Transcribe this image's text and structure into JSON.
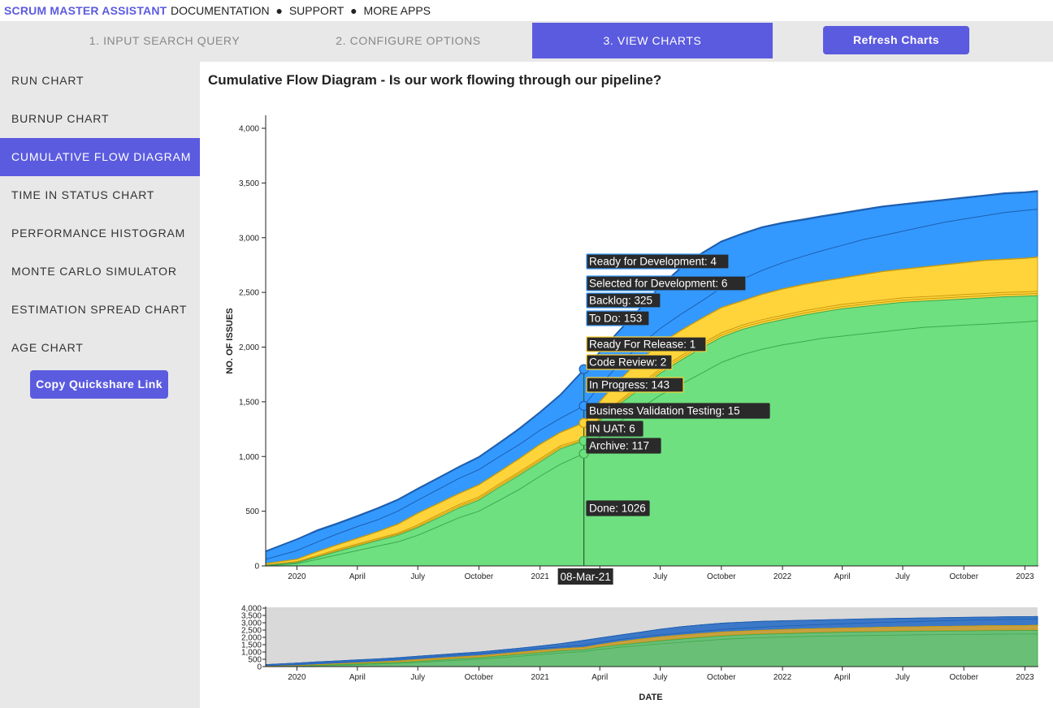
{
  "header": {
    "brand": "SCRUM MASTER ASSISTANT",
    "links": [
      "DOCUMENTATION",
      "SUPPORT",
      "MORE APPS"
    ],
    "separator": "●"
  },
  "steps": [
    {
      "label": "1. INPUT SEARCH QUERY",
      "active": false
    },
    {
      "label": "2. CONFIGURE OPTIONS",
      "active": false
    },
    {
      "label": "3. VIEW CHARTS",
      "active": true
    }
  ],
  "refresh_label": "Refresh Charts",
  "sidebar": {
    "items": [
      {
        "label": "RUN CHART",
        "active": false
      },
      {
        "label": "BURNUP CHART",
        "active": false
      },
      {
        "label": "CUMULATIVE FLOW DIAGRAM",
        "active": true
      },
      {
        "label": "TIME IN STATUS CHART",
        "active": false
      },
      {
        "label": "PERFORMANCE HISTOGRAM",
        "active": false
      },
      {
        "label": "MONTE CARLO SIMULATOR",
        "active": false
      },
      {
        "label": "ESTIMATION SPREAD CHART",
        "active": false
      },
      {
        "label": "AGE CHART",
        "active": false
      }
    ],
    "quickshare_label": "Copy Quickshare Link"
  },
  "chart_data": {
    "type": "area",
    "title": "Cumulative Flow Diagram - Is our work flowing through our pipeline?",
    "xlabel": "DATE",
    "ylabel": "NO. OF ISSUES",
    "ylim": [
      0,
      4100
    ],
    "yticks": [
      "0",
      "500",
      "1,000",
      "1,500",
      "2,000",
      "2,500",
      "3,000",
      "3,500",
      "4,000"
    ],
    "xticks": [
      "2020",
      "April",
      "July",
      "October",
      "2021",
      "April",
      "July",
      "October",
      "2022",
      "April",
      "July",
      "October",
      "2023"
    ],
    "x": [
      "2019-11-15",
      "2020-01-01",
      "2020-02-01",
      "2020-03-01",
      "2020-04-01",
      "2020-05-01",
      "2020-06-01",
      "2020-07-01",
      "2020-08-01",
      "2020-09-01",
      "2020-10-01",
      "2020-11-01",
      "2020-12-01",
      "2021-01-01",
      "2021-02-01",
      "2021-03-08",
      "2021-04-01",
      "2021-05-01",
      "2021-06-01",
      "2021-07-01",
      "2021-08-01",
      "2021-09-01",
      "2021-10-01",
      "2021-11-01",
      "2021-12-01",
      "2022-01-01",
      "2022-02-01",
      "2022-03-01",
      "2022-04-01",
      "2022-05-01",
      "2022-06-01",
      "2022-07-01",
      "2022-08-01",
      "2022-09-01",
      "2022-10-01",
      "2022-11-01",
      "2022-12-01",
      "2023-01-01",
      "2023-01-20"
    ],
    "series_order_bottom_to_top": [
      "Done",
      "Archive",
      "IN UAT",
      "Business Validation Testing",
      "In Progress",
      "Code Review",
      "Ready For Release",
      "To Do",
      "Backlog",
      "Selected for Development",
      "Ready for Development"
    ],
    "cumulative_top": [
      [
        0,
        20,
        60,
        100,
        140,
        180,
        220,
        280,
        360,
        440,
        500,
        600,
        700,
        820,
        930,
        1026,
        1180,
        1320,
        1440,
        1560,
        1660,
        1760,
        1860,
        1930,
        1980,
        2020,
        2050,
        2080,
        2100,
        2120,
        2140,
        2160,
        2180,
        2190,
        2200,
        2210,
        2220,
        2230,
        2240
      ],
      [
        5,
        30,
        80,
        130,
        180,
        230,
        280,
        350,
        440,
        530,
        600,
        720,
        830,
        950,
        1070,
        1143,
        1330,
        1480,
        1620,
        1760,
        1880,
        1990,
        2090,
        2160,
        2210,
        2250,
        2290,
        2320,
        2350,
        2370,
        2390,
        2410,
        2420,
        2430,
        2440,
        2450,
        2460,
        2465,
        2470
      ],
      [
        8,
        35,
        85,
        140,
        190,
        240,
        290,
        360,
        455,
        545,
        615,
        735,
        845,
        965,
        1085,
        1149,
        1340,
        1495,
        1640,
        1780,
        1900,
        2010,
        2110,
        2180,
        2230,
        2270,
        2310,
        2340,
        2370,
        2390,
        2410,
        2430,
        2440,
        2450,
        2460,
        2470,
        2480,
        2485,
        2490
      ],
      [
        10,
        40,
        95,
        150,
        200,
        250,
        300,
        375,
        470,
        560,
        630,
        750,
        860,
        980,
        1100,
        1164,
        1355,
        1510,
        1660,
        1800,
        1920,
        2030,
        2130,
        2200,
        2250,
        2290,
        2330,
        2360,
        2390,
        2410,
        2430,
        2450,
        2460,
        2470,
        2480,
        2490,
        2500,
        2505,
        2510
      ],
      [
        20,
        60,
        130,
        190,
        250,
        310,
        380,
        480,
        570,
        660,
        740,
        860,
        980,
        1110,
        1220,
        1307,
        1500,
        1700,
        1880,
        2030,
        2150,
        2260,
        2360,
        2420,
        2480,
        2530,
        2570,
        2600,
        2630,
        2660,
        2690,
        2710,
        2730,
        2750,
        2770,
        2790,
        2800,
        2810,
        2820
      ],
      [
        21,
        61,
        131,
        191,
        252,
        312,
        382,
        482,
        572,
        662,
        742,
        862,
        982,
        1112,
        1222,
        1309,
        1502,
        1702,
        1882,
        2032,
        2152,
        2262,
        2362,
        2422,
        2482,
        2532,
        2572,
        2602,
        2632,
        2662,
        2692,
        2712,
        2732,
        2752,
        2772,
        2792,
        2802,
        2812,
        2822
      ],
      [
        22,
        62,
        132,
        192,
        253,
        313,
        383,
        483,
        573,
        663,
        743,
        863,
        983,
        1113,
        1223,
        1310,
        1503,
        1703,
        1883,
        2033,
        2153,
        2263,
        2363,
        2423,
        2483,
        2533,
        2573,
        2603,
        2633,
        2663,
        2693,
        2713,
        2733,
        2753,
        2773,
        2793,
        2803,
        2813,
        2823
      ],
      [
        60,
        140,
        220,
        290,
        360,
        420,
        500,
        600,
        700,
        800,
        880,
        1000,
        1110,
        1240,
        1350,
        1463,
        1650,
        1850,
        2020,
        2170,
        2300,
        2420,
        2540,
        2620,
        2700,
        2770,
        2830,
        2880,
        2930,
        2980,
        3020,
        3060,
        3100,
        3140,
        3170,
        3200,
        3230,
        3250,
        3260
      ],
      [
        130,
        240,
        320,
        380,
        450,
        520,
        600,
        700,
        800,
        900,
        990,
        1120,
        1250,
        1400,
        1560,
        1788,
        1950,
        2150,
        2350,
        2550,
        2720,
        2850,
        2960,
        3030,
        3090,
        3130,
        3160,
        3190,
        3220,
        3250,
        3280,
        3300,
        3320,
        3340,
        3360,
        3380,
        3400,
        3410,
        3420
      ],
      [
        133,
        243,
        326,
        386,
        456,
        526,
        606,
        706,
        806,
        906,
        996,
        1126,
        1256,
        1406,
        1566,
        1794,
        1956,
        2156,
        2356,
        2556,
        2726,
        2856,
        2966,
        3036,
        3096,
        3136,
        3166,
        3196,
        3226,
        3256,
        3286,
        3306,
        3326,
        3346,
        3366,
        3386,
        3406,
        3416,
        3426
      ],
      [
        137,
        247,
        330,
        390,
        460,
        530,
        610,
        710,
        810,
        910,
        1000,
        1130,
        1260,
        1410,
        1570,
        1798,
        1960,
        2160,
        2360,
        2560,
        2730,
        2860,
        2970,
        3040,
        3100,
        3140,
        3170,
        3200,
        3230,
        3260,
        3290,
        3310,
        3330,
        3350,
        3370,
        3390,
        3410,
        3420,
        3430
      ]
    ],
    "hover": {
      "date_label": "08-Mar-21",
      "values": [
        {
          "name": "Ready for Development",
          "value": 4
        },
        {
          "name": "Selected for Development",
          "value": 6
        },
        {
          "name": "Backlog",
          "value": 325
        },
        {
          "name": "To Do",
          "value": 153
        },
        {
          "name": "Ready For Release",
          "value": 1
        },
        {
          "name": "Code Review",
          "value": 2
        },
        {
          "name": "In Progress",
          "value": 143
        },
        {
          "name": "Business Validation Testing",
          "value": 15
        },
        {
          "name": "IN UAT",
          "value": 6
        },
        {
          "name": "Archive",
          "value": 117
        },
        {
          "name": "Done",
          "value": 1026
        }
      ]
    },
    "colors": {
      "done": "#6ee07f",
      "done_line": "#3fa850",
      "progress": "#ffd43b",
      "progress_line": "#c89a10",
      "todo": "#3399ff",
      "todo_line": "#1f5fb0",
      "brush_done": "#6abf76",
      "brush_progress": "#c8a040",
      "brush_todo": "#3b78c8",
      "brush_bg": "#d9d9d9"
    },
    "brush": {
      "yticks": [
        "0",
        "500",
        "1,000",
        "1,500",
        "2,000",
        "2,500",
        "3,000",
        "3,500",
        "4,000"
      ]
    }
  }
}
